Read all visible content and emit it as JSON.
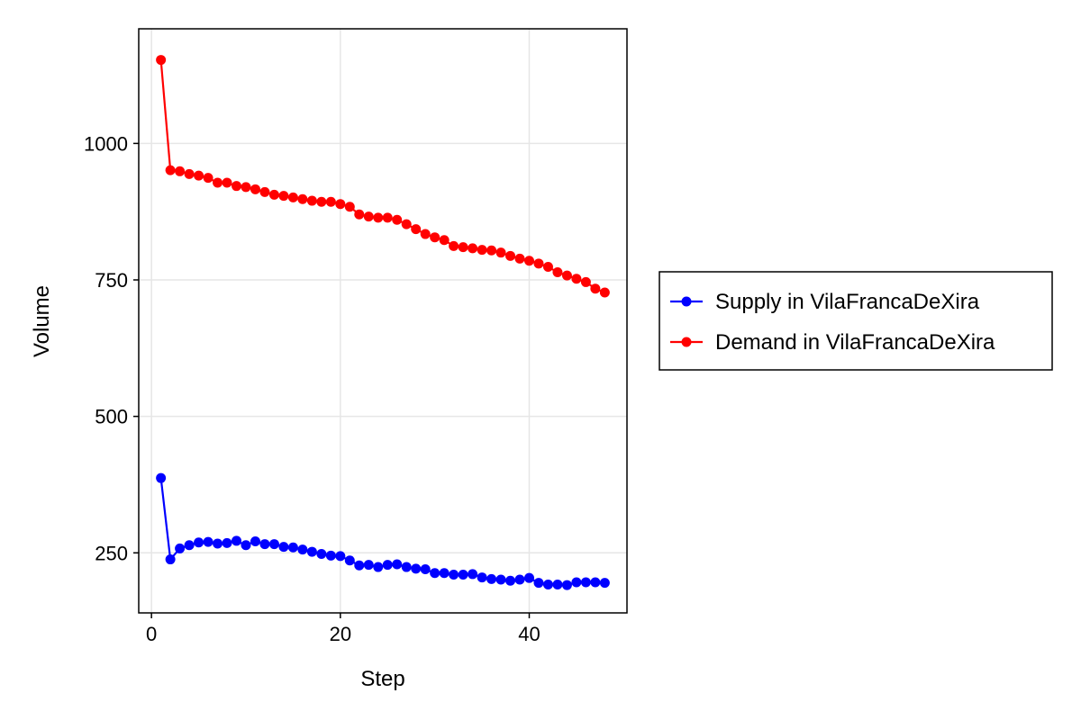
{
  "chart_data": {
    "type": "line",
    "title": "",
    "xlabel": "Step",
    "ylabel": "Volume",
    "xlim": [
      -1.35,
      50.35
    ],
    "ylim": [
      140,
      1210
    ],
    "xticks": [
      0,
      20,
      40
    ],
    "yticks": [
      250,
      500,
      750,
      1000
    ],
    "xtick_labels": [
      "0",
      "20",
      "40"
    ],
    "ytick_labels": [
      "250",
      "500",
      "750",
      "1000"
    ],
    "grid": true,
    "legend_position": "right",
    "series": [
      {
        "name": "Supply in VilaFrancaDeXira",
        "color": "#0000ff",
        "x": [
          1,
          2,
          3,
          4,
          5,
          6,
          7,
          8,
          9,
          10,
          11,
          12,
          13,
          14,
          15,
          16,
          17,
          18,
          19,
          20,
          21,
          22,
          23,
          24,
          25,
          26,
          27,
          28,
          29,
          30,
          31,
          32,
          33,
          34,
          35,
          36,
          37,
          38,
          39,
          40,
          41,
          42,
          43,
          44,
          45,
          46,
          47,
          48
        ],
        "y": [
          387,
          238,
          258,
          264,
          269,
          270,
          267,
          268,
          272,
          264,
          271,
          266,
          266,
          261,
          260,
          256,
          252,
          248,
          245,
          244,
          236,
          227,
          228,
          224,
          228,
          229,
          224,
          221,
          220,
          213,
          213,
          210,
          210,
          211,
          205,
          202,
          201,
          199,
          201,
          204,
          195,
          192,
          192,
          191,
          196,
          196,
          196,
          195
        ]
      },
      {
        "name": "Demand in VilaFrancaDeXira",
        "color": "#ff0000",
        "x": [
          1,
          2,
          3,
          4,
          5,
          6,
          7,
          8,
          9,
          10,
          11,
          12,
          13,
          14,
          15,
          16,
          17,
          18,
          19,
          20,
          21,
          22,
          23,
          24,
          25,
          26,
          27,
          28,
          29,
          30,
          31,
          32,
          33,
          34,
          35,
          36,
          37,
          38,
          39,
          40,
          41,
          42,
          43,
          44,
          45,
          46,
          47,
          48
        ],
        "y": [
          1153,
          951,
          949,
          944,
          941,
          937,
          928,
          928,
          922,
          920,
          916,
          911,
          906,
          904,
          901,
          898,
          895,
          893,
          893,
          889,
          884,
          870,
          866,
          864,
          864,
          860,
          852,
          843,
          834,
          828,
          823,
          812,
          810,
          808,
          805,
          804,
          800,
          794,
          789,
          785,
          780,
          774,
          764,
          758,
          752,
          746,
          734,
          727
        ]
      }
    ]
  }
}
